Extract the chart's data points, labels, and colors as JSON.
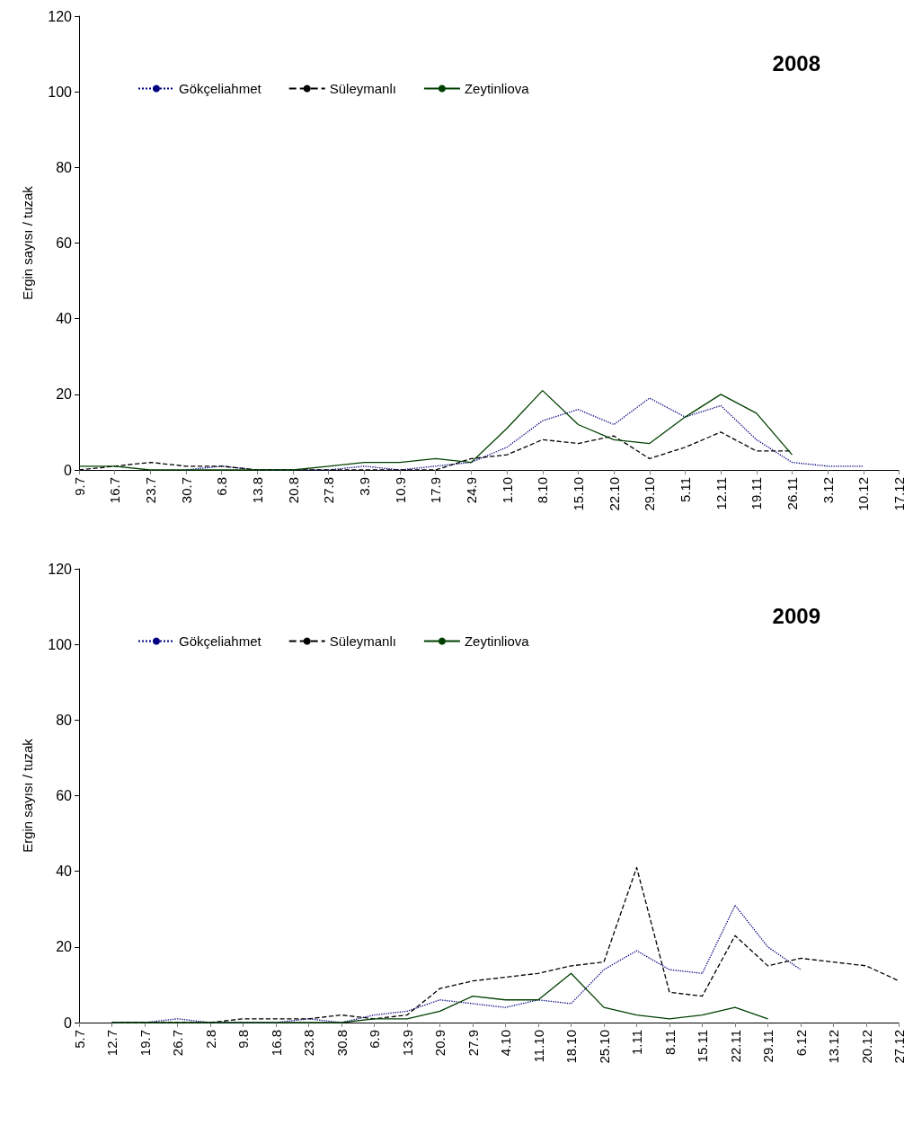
{
  "chart_data": [
    {
      "type": "line",
      "title": "2008",
      "ylabel": "Ergin sayısı / tuzak",
      "categories": [
        "9.7",
        "16.7",
        "23.7",
        "30.7",
        "6.8",
        "13.8",
        "20.8",
        "27.8",
        "3.9",
        "10.9",
        "17.9",
        "24.9",
        "1.10",
        "8.10",
        "15.10",
        "22.10",
        "29.10",
        "5.11",
        "12.11",
        "19.11",
        "26.11",
        "3.12",
        "10.12",
        "17.12"
      ],
      "series": [
        {
          "name": "Gökçeliahmet",
          "color": "#000080",
          "line_style": "dotted",
          "values": [
            null,
            null,
            null,
            0,
            1,
            0,
            0,
            0,
            1,
            0,
            1,
            2,
            6,
            13,
            16,
            12,
            19,
            14,
            17,
            8,
            2,
            1,
            1,
            null
          ]
        },
        {
          "name": "Süleymanlı",
          "color": "#000000",
          "line_style": "dashed",
          "values": [
            0,
            1,
            2,
            1,
            1,
            0,
            0,
            0,
            0,
            0,
            0,
            3,
            4,
            8,
            7,
            9,
            3,
            6,
            10,
            5,
            5,
            null,
            null,
            null
          ]
        },
        {
          "name": "Zeytinliova",
          "color": "#004000",
          "line_style": "solid",
          "values": [
            1,
            1,
            0,
            0,
            0,
            0,
            0,
            1,
            2,
            2,
            3,
            2,
            11,
            21,
            12,
            8,
            7,
            14,
            20,
            15,
            4,
            null,
            null,
            null
          ]
        }
      ],
      "ylim": [
        0,
        120
      ],
      "yticks": [
        0,
        20,
        40,
        60,
        80,
        100,
        120
      ],
      "grid": false,
      "legend": "top left",
      "marker": "none"
    },
    {
      "type": "line",
      "title": "2009",
      "ylabel": "Ergin sayısı / tuzak",
      "categories": [
        "5.7",
        "12.7",
        "19.7",
        "26.7",
        "2.8",
        "9.8",
        "16.8",
        "23.8",
        "30.8",
        "6.9",
        "13.9",
        "20.9",
        "27.9",
        "4.10",
        "11.10",
        "18.10",
        "25.10",
        "1.11",
        "8.11",
        "15.11",
        "22.11",
        "29.11",
        "6.12",
        "13.12",
        "20.12",
        "27.12"
      ],
      "series": [
        {
          "name": "Gökçeliahmet",
          "color": "#000080",
          "line_style": "dotted",
          "values": [
            null,
            0,
            0,
            1,
            0,
            0,
            0,
            1,
            0,
            2,
            3,
            6,
            5,
            4,
            6,
            5,
            14,
            19,
            14,
            13,
            31,
            20,
            14,
            null,
            null,
            null
          ]
        },
        {
          "name": "Süleymanlı",
          "color": "#000000",
          "line_style": "dashed",
          "values": [
            null,
            0,
            0,
            0,
            0,
            1,
            1,
            1,
            2,
            1,
            2,
            9,
            11,
            12,
            13,
            15,
            16,
            41,
            8,
            7,
            23,
            15,
            17,
            16,
            15,
            11
          ]
        },
        {
          "name": "Zeytinliova",
          "color": "#004000",
          "line_style": "solid",
          "values": [
            null,
            0,
            0,
            0,
            0,
            0,
            0,
            0,
            0,
            1,
            1,
            3,
            7,
            6,
            6,
            13,
            4,
            2,
            1,
            2,
            4,
            1,
            null,
            null,
            null,
            null
          ]
        }
      ],
      "ylim": [
        0,
        120
      ],
      "yticks": [
        0,
        20,
        40,
        60,
        80,
        100,
        120
      ],
      "grid": false,
      "legend": "top left",
      "marker": "none"
    }
  ]
}
